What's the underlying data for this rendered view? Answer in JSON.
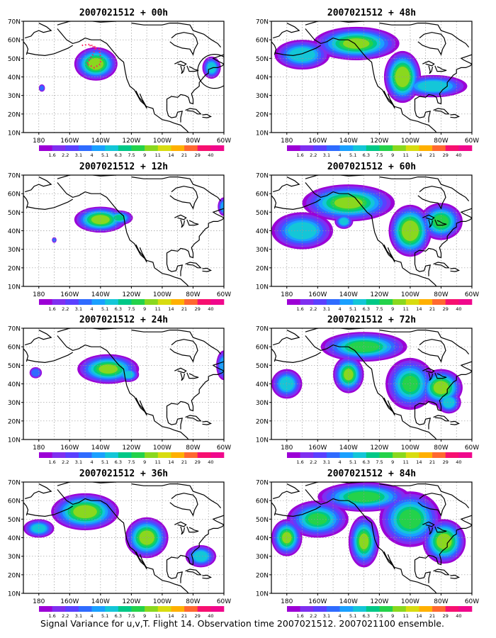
{
  "caption": "Signal Variance for u,v,T. Flight 14. Observation time 2007021512. 2007021100 ensemble.",
  "panels": [
    {
      "title": "2007021512 + 00h",
      "lead": "00h"
    },
    {
      "title": "2007021512 + 48h",
      "lead": "48h"
    },
    {
      "title": "2007021512 + 12h",
      "lead": "12h"
    },
    {
      "title": "2007021512 + 60h",
      "lead": "60h"
    },
    {
      "title": "2007021512 + 24h",
      "lead": "24h"
    },
    {
      "title": "2007021512 + 72h",
      "lead": "72h"
    },
    {
      "title": "2007021512 + 36h",
      "lead": "36h"
    },
    {
      "title": "2007021512 + 84h",
      "lead": "84h"
    }
  ],
  "axes": {
    "lat_ticks": [
      "10N",
      "20N",
      "30N",
      "40N",
      "50N",
      "60N",
      "70N"
    ],
    "lon_ticks": [
      "180",
      "160W",
      "140W",
      "120W",
      "100W",
      "80W",
      "60W"
    ],
    "lat_range": [
      10,
      70
    ],
    "lon_range": [
      -190,
      -60
    ]
  },
  "colorbar": {
    "labels": [
      "1.6",
      "2.2",
      "3.1",
      "4",
      "5.1",
      "6.3",
      "7.5",
      "9",
      "11",
      "14",
      "21",
      "29",
      "40"
    ],
    "colors": [
      "#9c00d6",
      "#7f2ff0",
      "#5a40ff",
      "#2f6bff",
      "#1aa0ff",
      "#14c6d8",
      "#00c887",
      "#24d24a",
      "#8ad81e",
      "#d8dc10",
      "#ffb000",
      "#ff6830",
      "#f71070",
      "#f0088c"
    ]
  },
  "annotations": {
    "flight_track": "red dotted flight track over the Gulf of Alaska",
    "circle_marker": "circle over the eastern U.S. coast"
  }
}
